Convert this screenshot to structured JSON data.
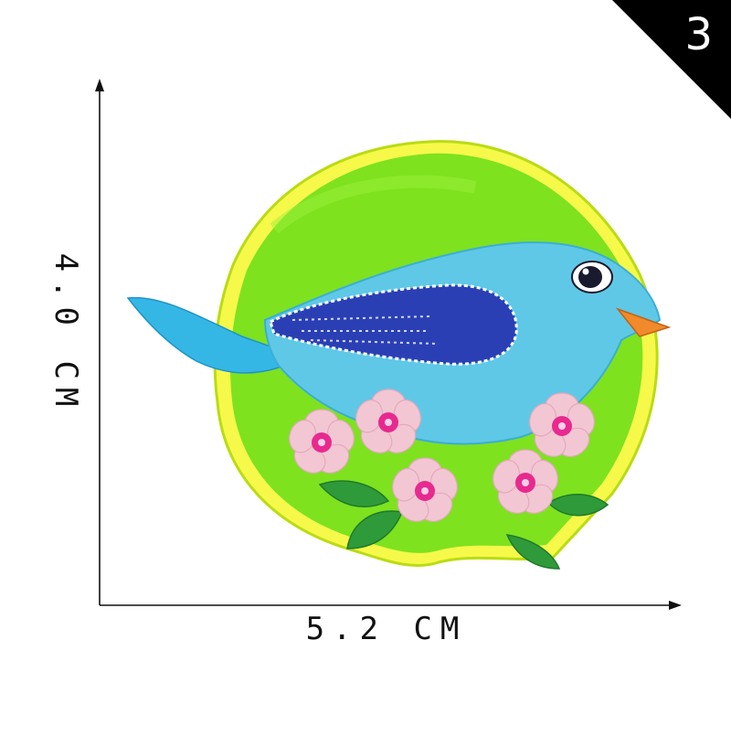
{
  "badge": {
    "number": "3"
  },
  "dimensions": {
    "width_label": "5.2 CM",
    "height_label": "4.0 CM"
  },
  "colors": {
    "patch_green": "#7ee21f",
    "border_yellow": "#c9e617",
    "bird_blue": "#5fc8e6",
    "wing_blue": "#2b3fb5",
    "beak_orange": "#f08a2a",
    "petal_pink": "#f2c7d3",
    "flower_center": "#e8298f",
    "leaf_green": "#2f9a3a"
  }
}
